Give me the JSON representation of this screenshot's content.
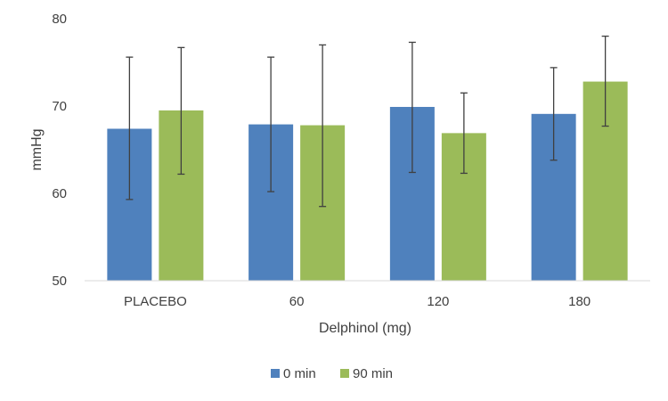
{
  "chart_data": {
    "type": "bar",
    "categories": [
      "PLACEBO",
      "60",
      "120",
      "180"
    ],
    "series": [
      {
        "name": "0 min",
        "color": "#4F81BD",
        "values": [
          67.4,
          67.9,
          69.9,
          69.1
        ],
        "error_low": [
          59.3,
          60.2,
          62.4,
          63.8
        ],
        "error_high": [
          75.6,
          75.6,
          77.3,
          74.4
        ]
      },
      {
        "name": "90 min",
        "color": "#9BBB59",
        "values": [
          69.5,
          67.8,
          66.9,
          72.8
        ],
        "error_low": [
          62.2,
          58.5,
          62.3,
          67.7
        ],
        "error_high": [
          76.7,
          77.0,
          71.5,
          78.0
        ]
      }
    ],
    "xlabel": "Delphinol (mg)",
    "ylabel": "mmHg",
    "ylim": [
      50,
      80
    ],
    "yticks": [
      "50",
      "60",
      "70",
      "80"
    ],
    "grid": false,
    "legend": "bottom"
  }
}
